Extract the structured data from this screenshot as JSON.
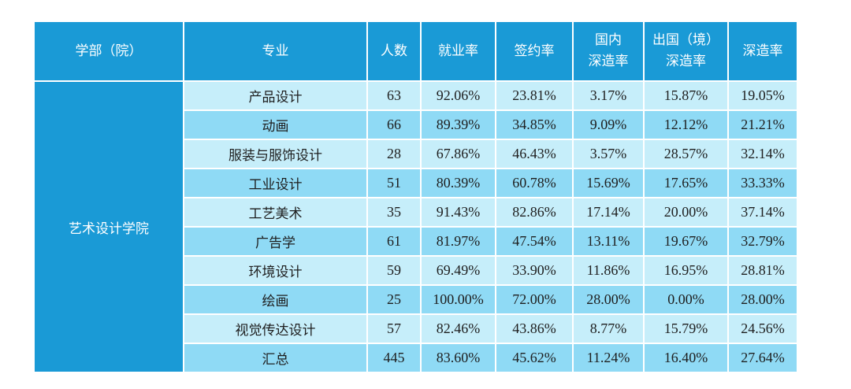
{
  "table": {
    "headers": [
      {
        "lines": [
          "学部（院）"
        ]
      },
      {
        "lines": [
          "专业"
        ]
      },
      {
        "lines": [
          "人数"
        ]
      },
      {
        "lines": [
          "就业率"
        ]
      },
      {
        "lines": [
          "签约率"
        ]
      },
      {
        "lines": [
          "国内",
          "深造率"
        ]
      },
      {
        "lines": [
          "出国（境）",
          "深造率"
        ]
      },
      {
        "lines": [
          "深造率"
        ]
      }
    ],
    "department": "艺术设计学院",
    "rows": [
      {
        "major": "产品设计",
        "count": "63",
        "employment": "92.06%",
        "contract": "23.81%",
        "domestic": "3.17%",
        "abroad": "15.87%",
        "further": "19.05%"
      },
      {
        "major": "动画",
        "count": "66",
        "employment": "89.39%",
        "contract": "34.85%",
        "domestic": "9.09%",
        "abroad": "12.12%",
        "further": "21.21%"
      },
      {
        "major": "服装与服饰设计",
        "count": "28",
        "employment": "67.86%",
        "contract": "46.43%",
        "domestic": "3.57%",
        "abroad": "28.57%",
        "further": "32.14%"
      },
      {
        "major": "工业设计",
        "count": "51",
        "employment": "80.39%",
        "contract": "60.78%",
        "domestic": "15.69%",
        "abroad": "17.65%",
        "further": "33.33%"
      },
      {
        "major": "工艺美术",
        "count": "35",
        "employment": "91.43%",
        "contract": "82.86%",
        "domestic": "17.14%",
        "abroad": "20.00%",
        "further": "37.14%"
      },
      {
        "major": "广告学",
        "count": "61",
        "employment": "81.97%",
        "contract": "47.54%",
        "domestic": "13.11%",
        "abroad": "19.67%",
        "further": "32.79%"
      },
      {
        "major": "环境设计",
        "count": "59",
        "employment": "69.49%",
        "contract": "33.90%",
        "domestic": "11.86%",
        "abroad": "16.95%",
        "further": "28.81%"
      },
      {
        "major": "绘画",
        "count": "25",
        "employment": "100.00%",
        "contract": "72.00%",
        "domestic": "28.00%",
        "abroad": "0.00%",
        "further": "28.00%"
      },
      {
        "major": "视觉传达设计",
        "count": "57",
        "employment": "82.46%",
        "contract": "43.86%",
        "domestic": "8.77%",
        "abroad": "15.79%",
        "further": "24.56%"
      },
      {
        "major": "汇总",
        "count": "445",
        "employment": "83.60%",
        "contract": "45.62%",
        "domestic": "11.24%",
        "abroad": "16.40%",
        "further": "27.64%"
      }
    ],
    "colors": {
      "header_bg": "#1a9ad6",
      "row_light": "#c6eefa",
      "row_dark": "#8fdaf5",
      "header_text": "#ffffff"
    }
  }
}
